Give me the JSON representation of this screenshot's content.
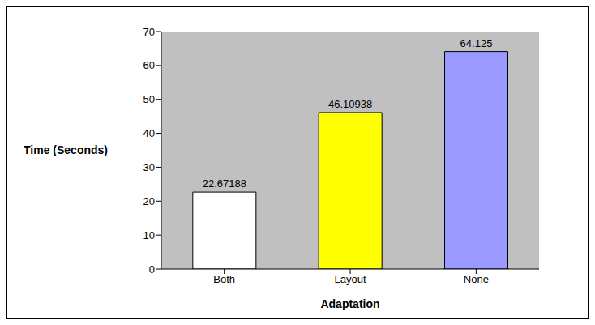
{
  "chart_data": {
    "type": "bar",
    "categories": [
      "Both",
      "Layout",
      "None"
    ],
    "values": [
      22.67188,
      46.10938,
      64.125
    ],
    "colors": [
      "#ffffff",
      "#ffff00",
      "#9999ff"
    ],
    "x_label": "Adaptation",
    "y_label": "Time (Seconds)",
    "ylim": [
      0,
      70
    ],
    "yticks": [
      0,
      10,
      20,
      30,
      40,
      50,
      60,
      70
    ],
    "grid": false,
    "data_labels": true
  }
}
